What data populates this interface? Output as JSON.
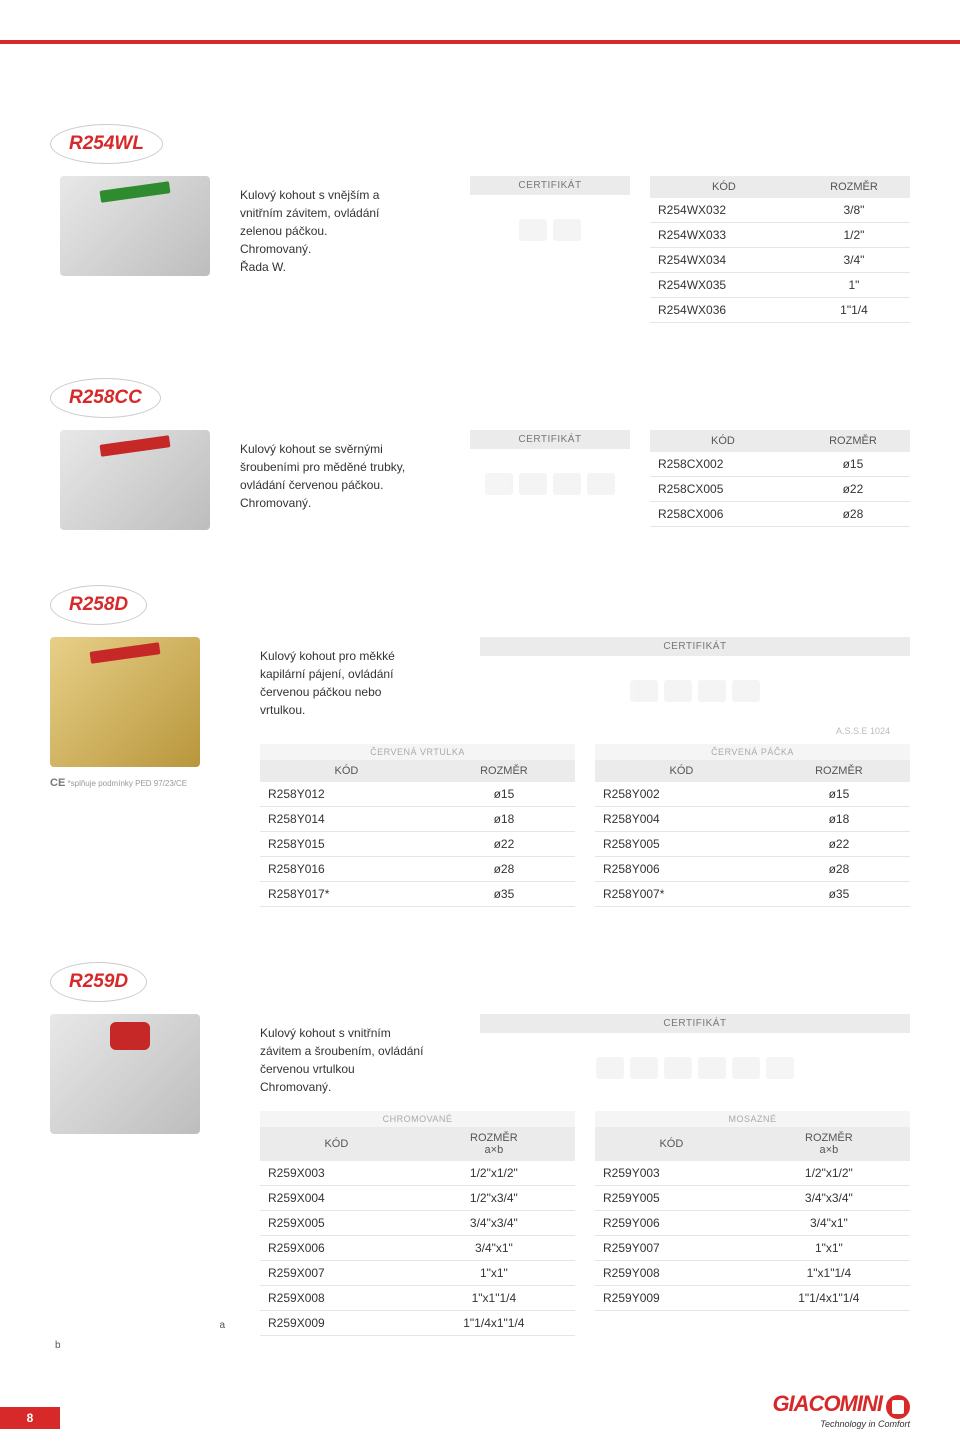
{
  "page_number": "8",
  "brand": {
    "name": "GIACOMINI",
    "tagline": "Technology in Comfort"
  },
  "labels": {
    "cert": "CERTIFIKÁT",
    "kod": "KÓD",
    "rozmer": "ROZMĚR",
    "rozmer_ab": "ROZMĚR\na×b",
    "cervena_vrtulka": "ČERVENÁ VRTULKA",
    "cervena_packa": "ČERVENÁ PÁČKA",
    "chromovane": "CHROMOVANÉ",
    "mosazne": "MOSAZNÉ",
    "asse": "A.S.S.E 1024"
  },
  "r254wl": {
    "code": "R254WL",
    "desc_lines": [
      "Kulový kohout s vnějším a",
      "vnitřním závitem, ovládání",
      "zelenou páčkou.",
      "Chromovaný.",
      "Řada W."
    ],
    "rows": [
      {
        "k": "R254WX032",
        "r": "3/8\""
      },
      {
        "k": "R254WX033",
        "r": "1/2\""
      },
      {
        "k": "R254WX034",
        "r": "3/4\""
      },
      {
        "k": "R254WX035",
        "r": "1\""
      },
      {
        "k": "R254WX036",
        "r": "1\"1/4"
      }
    ]
  },
  "r258cc": {
    "code": "R258CC",
    "desc_lines": [
      "Kulový kohout se svěrnými",
      "šroubeními pro měděné trubky,",
      "ovládání červenou páčkou.",
      "Chromovaný."
    ],
    "rows": [
      {
        "k": "R258CX002",
        "r": "ø15"
      },
      {
        "k": "R258CX005",
        "r": "ø22"
      },
      {
        "k": "R258CX006",
        "r": "ø28"
      }
    ]
  },
  "r258d": {
    "code": "R258D",
    "desc_lines": [
      "Kulový kohout pro měkké",
      "kapilární pájení, ovládání",
      "červenou páčkou nebo",
      "vrtulkou."
    ],
    "ped_note_prefix": "*splňuje podmínky PED 97/23/CE",
    "left_rows": [
      {
        "k": "R258Y012",
        "r": "ø15"
      },
      {
        "k": "R258Y014",
        "r": "ø18"
      },
      {
        "k": "R258Y015",
        "r": "ø22"
      },
      {
        "k": "R258Y016",
        "r": "ø28"
      },
      {
        "k": "R258Y017*",
        "r": "ø35"
      }
    ],
    "right_rows": [
      {
        "k": "R258Y002",
        "r": "ø15"
      },
      {
        "k": "R258Y004",
        "r": "ø18"
      },
      {
        "k": "R258Y005",
        "r": "ø22"
      },
      {
        "k": "R258Y006",
        "r": "ø28"
      },
      {
        "k": "R258Y007*",
        "r": "ø35"
      }
    ]
  },
  "r259d": {
    "code": "R259D",
    "desc_lines": [
      "Kulový kohout s vnitřním",
      "závitem a šroubením, ovládání",
      "červenou vrtulkou",
      "Chromovaný."
    ],
    "dim_a": "a",
    "dim_b": "b",
    "left_rows": [
      {
        "k": "R259X003",
        "r": "1/2\"x1/2\""
      },
      {
        "k": "R259X004",
        "r": "1/2\"x3/4\""
      },
      {
        "k": "R259X005",
        "r": "3/4\"x3/4\""
      },
      {
        "k": "R259X006",
        "r": "3/4\"x1\""
      },
      {
        "k": "R259X007",
        "r": "1\"x1\""
      },
      {
        "k": "R259X008",
        "r": "1\"x1\"1/4"
      },
      {
        "k": "R259X009",
        "r": "1\"1/4x1\"1/4"
      }
    ],
    "right_rows": [
      {
        "k": "R259Y003",
        "r": "1/2\"x1/2\""
      },
      {
        "k": "R259Y005",
        "r": "3/4\"x3/4\""
      },
      {
        "k": "R259Y006",
        "r": "3/4\"x1\""
      },
      {
        "k": "R259Y007",
        "r": "1\"x1\""
      },
      {
        "k": "R259Y008",
        "r": "1\"x1\"1/4"
      },
      {
        "k": "R259Y009",
        "r": "1\"1/4x1\"1/4"
      }
    ]
  }
}
